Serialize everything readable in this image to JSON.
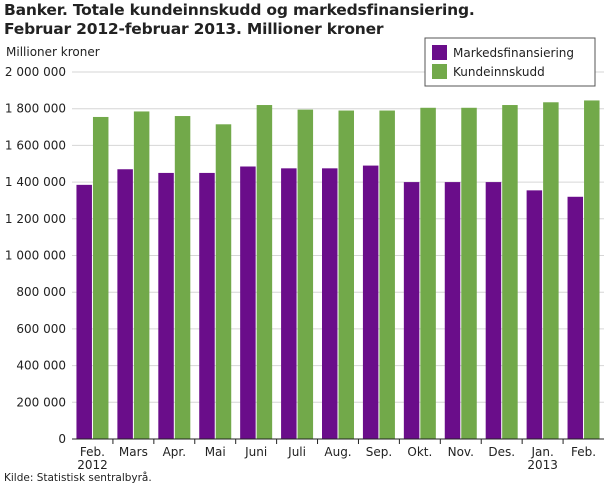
{
  "title_line1": "Banker. Totale kundeinnskudd og markedsfinansiering.",
  "title_line2": "Februar 2012-februar 2013. Millioner kroner",
  "source": "Kilde: Statistisk sentralbyrå.",
  "chart_data": {
    "type": "bar",
    "title": "Banker. Totale kundeinnskudd og markedsfinansiering. Februar 2012-februar 2013. Millioner kroner",
    "ylabel": "Millioner kroner",
    "ylim": [
      0,
      2000000
    ],
    "yticks": [
      0,
      200000,
      400000,
      600000,
      800000,
      1000000,
      1200000,
      1400000,
      1600000,
      1800000,
      2000000
    ],
    "ytick_labels": [
      "0",
      "200 000",
      "400 000",
      "600 000",
      "800 000",
      "1 000 000",
      "1 200 000",
      "1 400 000",
      "1 600 000",
      "1 800 000",
      "2 000 000"
    ],
    "categories": [
      [
        "Feb.",
        "2012"
      ],
      [
        "Mars"
      ],
      [
        "Apr."
      ],
      [
        "Mai"
      ],
      [
        "Juni"
      ],
      [
        "Juli"
      ],
      [
        "Aug."
      ],
      [
        "Sep."
      ],
      [
        "Okt."
      ],
      [
        "Nov."
      ],
      [
        "Des."
      ],
      [
        "Jan.",
        "2013"
      ],
      [
        "Feb."
      ]
    ],
    "series": [
      {
        "name": "Markedsfinansiering",
        "color": "#6a0d8a",
        "values": [
          1385000,
          1470000,
          1450000,
          1450000,
          1485000,
          1475000,
          1475000,
          1490000,
          1400000,
          1400000,
          1400000,
          1355000,
          1320000
        ]
      },
      {
        "name": "Kundeinnskudd",
        "color": "#72a94a",
        "values": [
          1755000,
          1785000,
          1760000,
          1715000,
          1820000,
          1795000,
          1790000,
          1790000,
          1805000,
          1805000,
          1820000,
          1835000,
          1845000
        ]
      }
    ],
    "grid": true,
    "legend_position": "top-right"
  }
}
